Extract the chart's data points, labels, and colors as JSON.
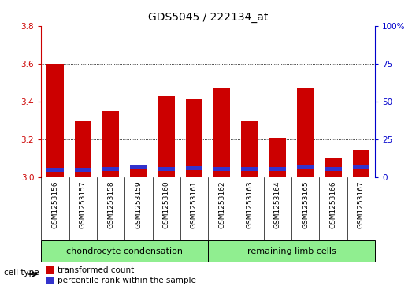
{
  "title": "GDS5045 / 222134_at",
  "samples": [
    "GSM1253156",
    "GSM1253157",
    "GSM1253158",
    "GSM1253159",
    "GSM1253160",
    "GSM1253161",
    "GSM1253162",
    "GSM1253163",
    "GSM1253164",
    "GSM1253165",
    "GSM1253166",
    "GSM1253167"
  ],
  "transformed_count": [
    3.6,
    3.3,
    3.35,
    3.06,
    3.43,
    3.41,
    3.47,
    3.3,
    3.21,
    3.47,
    3.1,
    3.14
  ],
  "percentile_rank_pct": [
    5.0,
    5.0,
    5.5,
    6.5,
    5.5,
    6.0,
    5.5,
    5.5,
    5.5,
    7.0,
    5.5,
    6.5
  ],
  "ymin": 3.0,
  "ymax": 3.8,
  "y_ticks_left": [
    3.0,
    3.2,
    3.4,
    3.6,
    3.8
  ],
  "y_ticks_right_pct": [
    0,
    25,
    50,
    75,
    100
  ],
  "bar_width": 0.6,
  "red_color": "#cc0000",
  "blue_color": "#3333cc",
  "group1_label": "chondrocyte condensation",
  "group2_label": "remaining limb cells",
  "cell_type_label": "cell type",
  "group_bg": "#90EE90",
  "plot_bg": "#ffffff",
  "sample_area_bg": "#d3d3d3",
  "legend1": "transformed count",
  "legend2": "percentile rank within the sample",
  "right_axis_color": "#0000cc",
  "left_axis_color": "#cc0000",
  "grid_color": "#000000",
  "title_fontsize": 10,
  "tick_fontsize": 7.5,
  "sample_fontsize": 6.5,
  "group_fontsize": 8,
  "legend_fontsize": 7.5
}
